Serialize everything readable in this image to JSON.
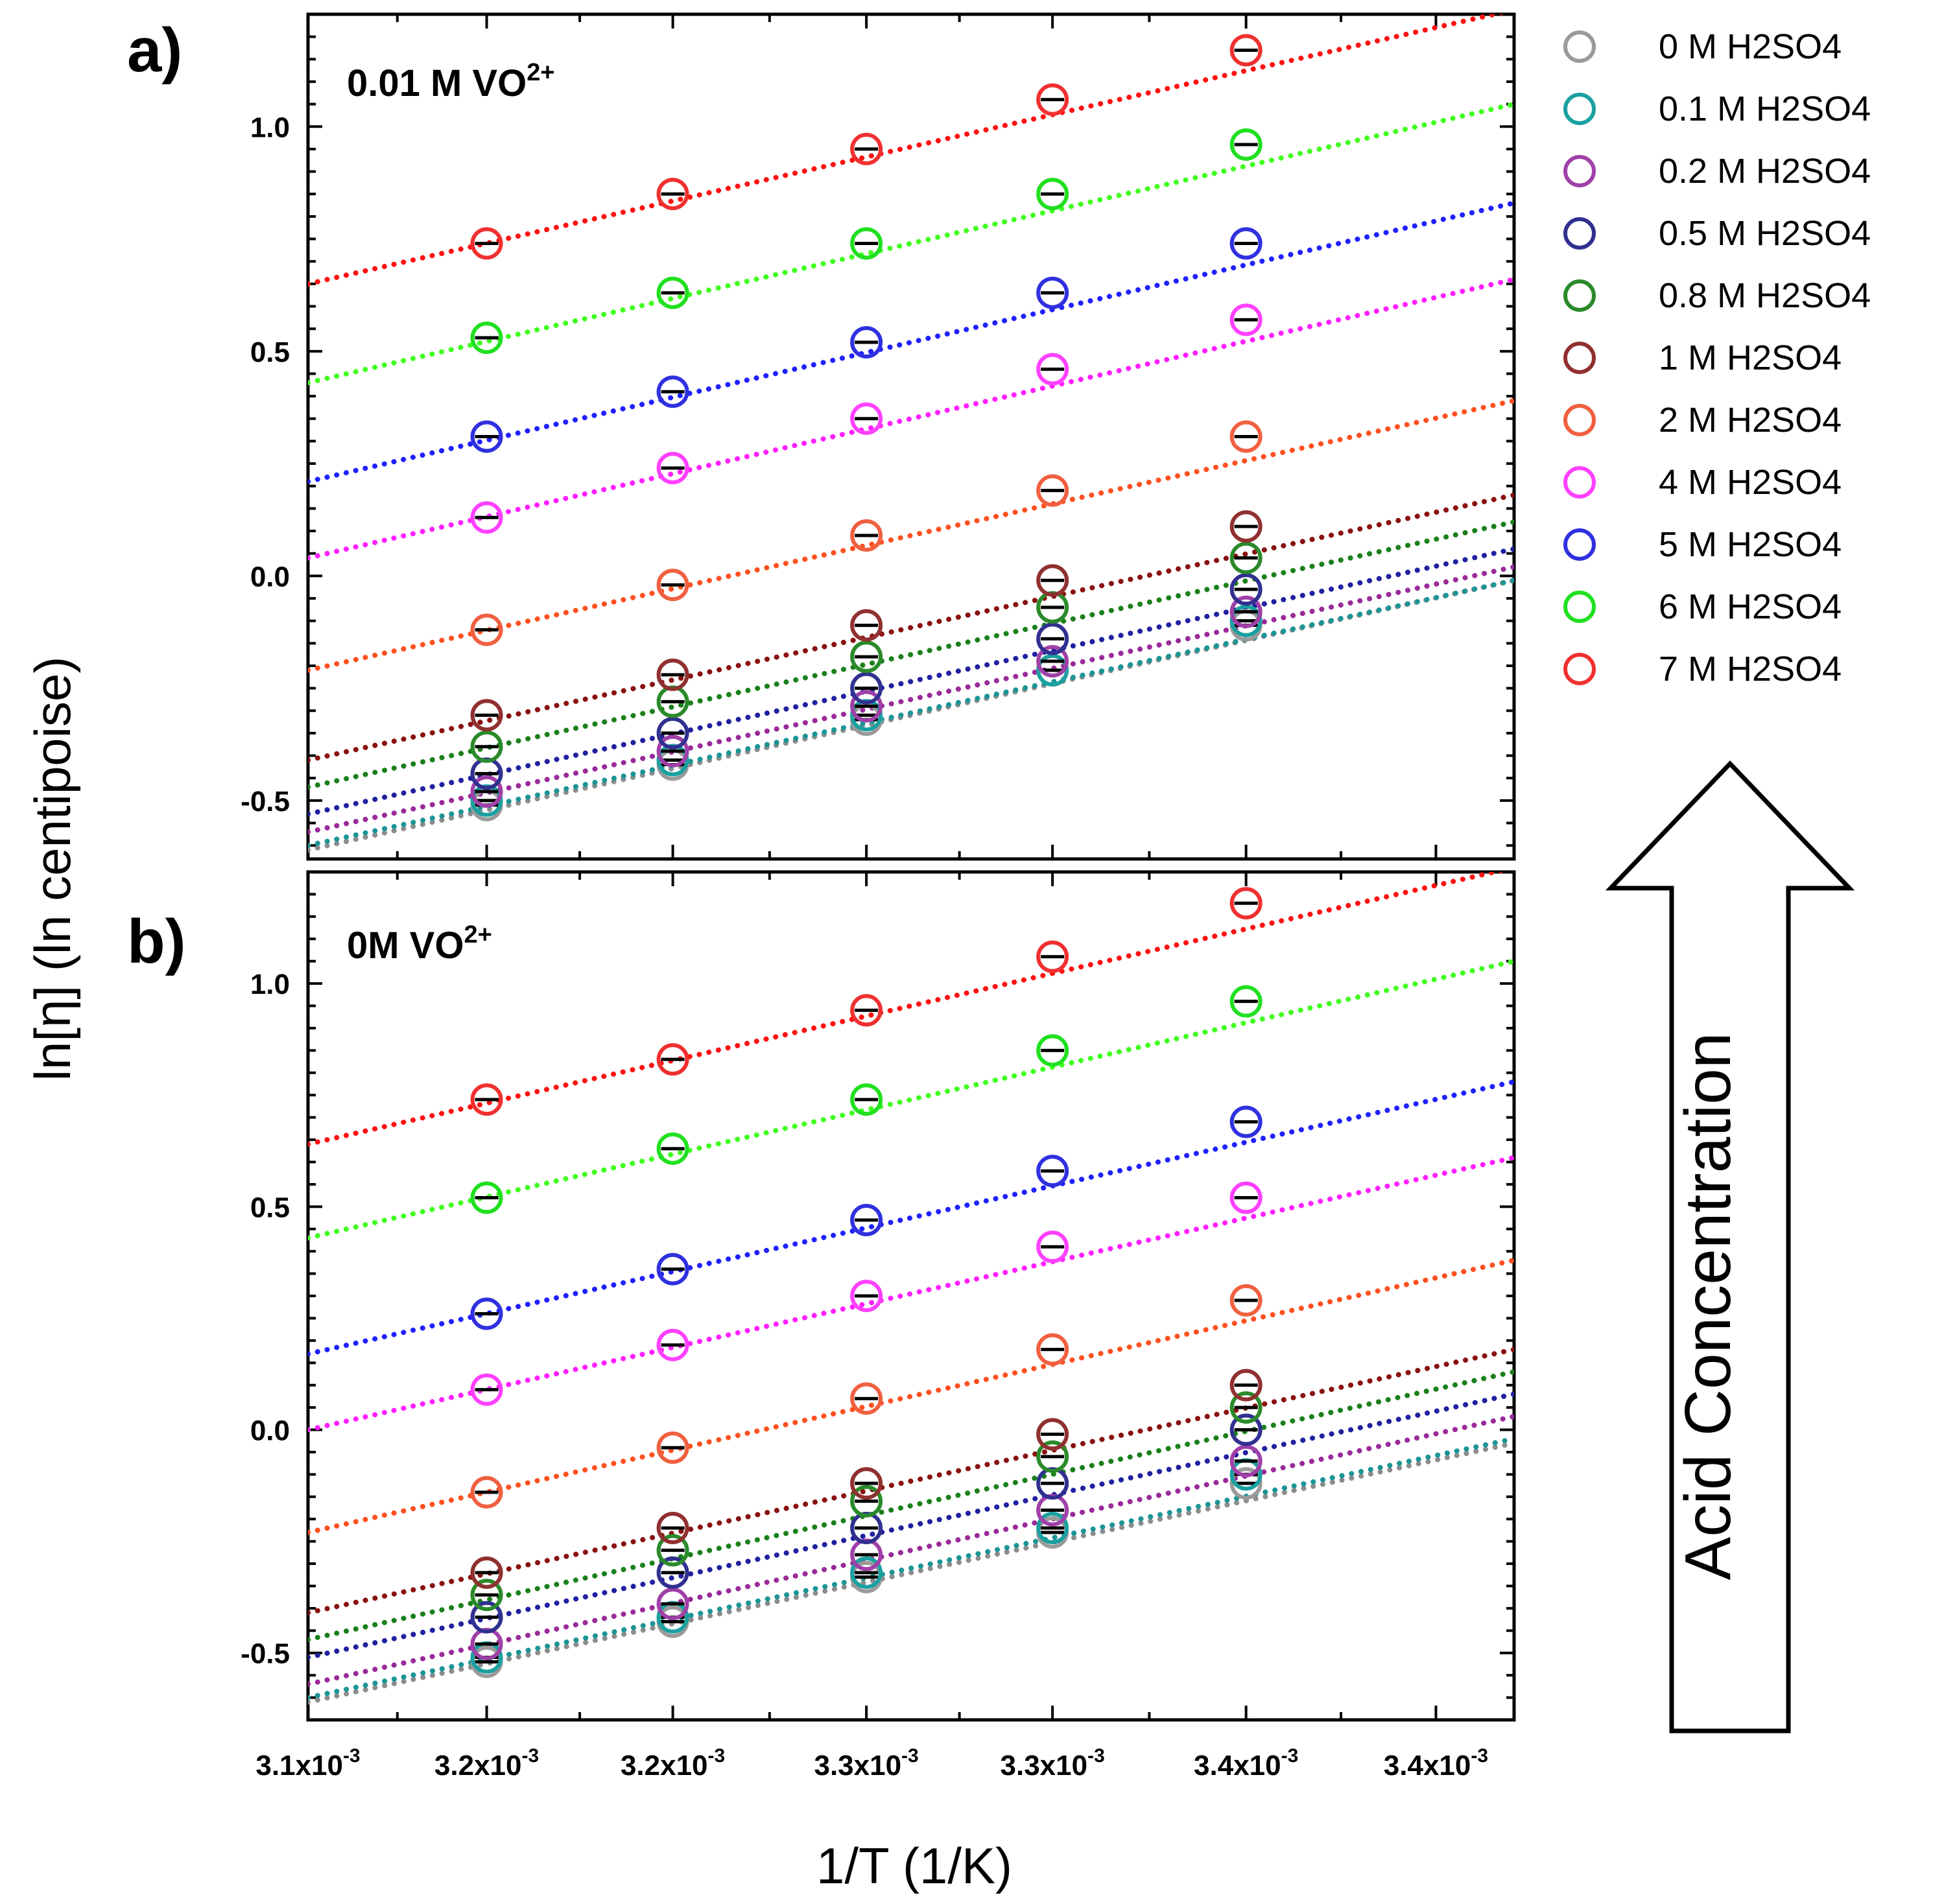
{
  "chart_data": [
    {
      "type": "scatter",
      "panel_label": "a)",
      "title": "0.01 M VO",
      "title_sup": "2+",
      "xlabel": "1/T (1/K)",
      "ylabel": "ln[η] (ln centipoise)",
      "xlim": [
        0.003095,
        0.003419
      ],
      "ylim": [
        -0.63,
        1.25
      ],
      "x": [
        0.003143,
        0.003193,
        0.003245,
        0.003295,
        0.003347
      ],
      "x_tick_labels": [
        "3.1x10",
        "3.2x10",
        "3.2x10",
        "3.3x10",
        "3.3x10",
        "3.4x10",
        "3.4x10"
      ],
      "x_tick_exponent": "-3",
      "y_ticks": [
        -0.5,
        0.0,
        0.5,
        1.0
      ],
      "y_tick_labels": [
        "-0.5",
        "0.0",
        "0.5",
        "1.0"
      ],
      "series": [
        {
          "name": "0 M H2SO4",
          "values": [
            -0.51,
            -0.42,
            -0.32,
            -0.21,
            -0.11
          ],
          "fit": [
            -0.61,
            -0.01
          ]
        },
        {
          "name": "0.1 M H2SO4",
          "values": [
            -0.5,
            -0.41,
            -0.31,
            -0.21,
            -0.1
          ],
          "fit": [
            -0.6,
            -0.01
          ]
        },
        {
          "name": "0.2 M H2SO4",
          "values": [
            -0.48,
            -0.39,
            -0.29,
            -0.19,
            -0.08
          ],
          "fit": [
            -0.57,
            0.02
          ]
        },
        {
          "name": "0.5 M H2SO4",
          "values": [
            -0.44,
            -0.35,
            -0.25,
            -0.14,
            -0.03
          ],
          "fit": [
            -0.53,
            0.06
          ]
        },
        {
          "name": "0.8 M H2SO4",
          "values": [
            -0.38,
            -0.28,
            -0.18,
            -0.07,
            0.04
          ],
          "fit": [
            -0.47,
            0.12
          ]
        },
        {
          "name": "1 M H2SO4",
          "values": [
            -0.31,
            -0.22,
            -0.11,
            -0.01,
            0.11
          ],
          "fit": [
            -0.41,
            0.18
          ]
        },
        {
          "name": "2 M H2SO4",
          "values": [
            -0.12,
            -0.02,
            0.09,
            0.19,
            0.31
          ],
          "fit": [
            -0.21,
            0.39
          ]
        },
        {
          "name": "4 M H2SO4",
          "values": [
            0.13,
            0.24,
            0.35,
            0.46,
            0.57
          ],
          "fit": [
            0.04,
            0.66
          ]
        },
        {
          "name": "5 M H2SO4",
          "values": [
            0.31,
            0.41,
            0.52,
            0.63,
            0.74
          ],
          "fit": [
            0.21,
            0.83
          ]
        },
        {
          "name": "6 M H2SO4",
          "values": [
            0.53,
            0.63,
            0.74,
            0.85,
            0.96
          ],
          "fit": [
            0.43,
            1.05
          ]
        },
        {
          "name": "7 M H2SO4",
          "values": [
            0.74,
            0.85,
            0.95,
            1.06,
            1.17
          ],
          "fit": [
            0.65,
            1.26
          ]
        }
      ]
    },
    {
      "type": "scatter",
      "panel_label": "b)",
      "title": "0M VO",
      "title_sup": "2+",
      "xlabel": "1/T (1/K)",
      "ylabel": "ln[η] (ln centipoise)",
      "xlim": [
        0.003095,
        0.003419
      ],
      "ylim": [
        -0.65,
        1.25
      ],
      "x": [
        0.003143,
        0.003193,
        0.003245,
        0.003295,
        0.003347
      ],
      "x_tick_labels": [
        "3.1x10",
        "3.2x10",
        "3.2x10",
        "3.3x10",
        "3.3x10",
        "3.4x10",
        "3.4x10"
      ],
      "x_tick_exponent": "-3",
      "y_ticks": [
        -0.5,
        0.0,
        0.5,
        1.0
      ],
      "y_tick_labels": [
        "-0.5",
        "0.0",
        "0.5",
        "1.0"
      ],
      "series": [
        {
          "name": "0 M H2SO4",
          "values": [
            -0.52,
            -0.43,
            -0.33,
            -0.23,
            -0.12
          ],
          "fit": [
            -0.61,
            -0.03
          ]
        },
        {
          "name": "0.1 M H2SO4",
          "values": [
            -0.51,
            -0.42,
            -0.32,
            -0.22,
            -0.1
          ],
          "fit": [
            -0.6,
            -0.02
          ]
        },
        {
          "name": "0.2 M H2SO4",
          "values": [
            -0.48,
            -0.39,
            -0.28,
            -0.18,
            -0.07
          ],
          "fit": [
            -0.57,
            0.03
          ]
        },
        {
          "name": "0.5 M H2SO4",
          "values": [
            -0.42,
            -0.32,
            -0.22,
            -0.12,
            0.0
          ],
          "fit": [
            -0.51,
            0.08
          ]
        },
        {
          "name": "0.8 M H2SO4",
          "values": [
            -0.37,
            -0.27,
            -0.16,
            -0.06,
            0.05
          ],
          "fit": [
            -0.47,
            0.13
          ]
        },
        {
          "name": "1 M H2SO4",
          "values": [
            -0.32,
            -0.22,
            -0.12,
            -0.01,
            0.1
          ],
          "fit": [
            -0.41,
            0.18
          ]
        },
        {
          "name": "2 M H2SO4",
          "values": [
            -0.14,
            -0.04,
            0.07,
            0.18,
            0.29
          ],
          "fit": [
            -0.23,
            0.38
          ]
        },
        {
          "name": "4 M H2SO4",
          "values": [
            0.09,
            0.19,
            0.3,
            0.41,
            0.52
          ],
          "fit": [
            0.0,
            0.61
          ]
        },
        {
          "name": "5 M H2SO4",
          "values": [
            0.26,
            0.36,
            0.47,
            0.58,
            0.69
          ],
          "fit": [
            0.17,
            0.78
          ]
        },
        {
          "name": "6 M H2SO4",
          "values": [
            0.52,
            0.63,
            0.74,
            0.85,
            0.96
          ],
          "fit": [
            0.43,
            1.05
          ]
        },
        {
          "name": "7 M H2SO4",
          "values": [
            0.74,
            0.83,
            0.94,
            1.06,
            1.18
          ],
          "fit": [
            0.64,
            1.26
          ]
        }
      ]
    }
  ],
  "legend": {
    "entries": [
      {
        "label": "0 M H2SO4",
        "color": "#9a9a9a",
        "fit_color": "#8c8c8c"
      },
      {
        "label": "0.1 M H2SO4",
        "color": "#1aa0a0",
        "fit_color": "#1b9595"
      },
      {
        "label": "0.2 M H2SO4",
        "color": "#a040a8",
        "fit_color": "#9a2a9a"
      },
      {
        "label": "0.5 M H2SO4",
        "color": "#303090",
        "fit_color": "#2020a0"
      },
      {
        "label": "0.8 M H2SO4",
        "color": "#2a8a2a",
        "fit_color": "#1a801a"
      },
      {
        "label": "1 M H2SO4",
        "color": "#903030",
        "fit_color": "#8a1010"
      },
      {
        "label": "2 M H2SO4",
        "color": "#f06040",
        "fit_color": "#ff5020"
      },
      {
        "label": "4 M H2SO4",
        "color": "#ff40ff",
        "fit_color": "#ff20ff"
      },
      {
        "label": "5 M H2SO4",
        "color": "#3030e0",
        "fit_color": "#2020ff"
      },
      {
        "label": "6 M H2SO4",
        "color": "#20e020",
        "fit_color": "#40ff20"
      },
      {
        "label": "7 M H2SO4",
        "color": "#f03030",
        "fit_color": "#ff1010"
      }
    ]
  },
  "annotation": {
    "arrow_text": "Acid Concentration"
  }
}
